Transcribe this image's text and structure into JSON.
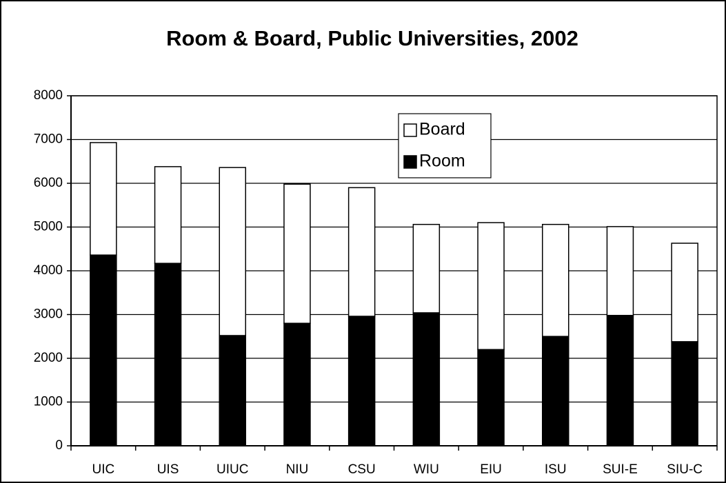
{
  "chart_data": {
    "type": "stacked_bar",
    "title": "Room & Board, Public Universities, 2002",
    "categories": [
      "UIC",
      "UIS",
      "UIUC",
      "NIU",
      "CSU",
      "WIU",
      "EIU",
      "ISU",
      "SUI-E",
      "SIU-C"
    ],
    "series": [
      {
        "name": "Room",
        "color": "#000000",
        "values": [
          4360,
          4170,
          2520,
          2800,
          2960,
          3040,
          2200,
          2500,
          2980,
          2380
        ]
      },
      {
        "name": "Board",
        "color": "#ffffff",
        "values": [
          2570,
          2210,
          3840,
          3180,
          2940,
          2020,
          2900,
          2560,
          2030,
          2250
        ]
      }
    ],
    "ylim": [
      0,
      8000
    ],
    "yticks": [
      0,
      1000,
      2000,
      3000,
      4000,
      5000,
      6000,
      7000,
      8000
    ],
    "grid": true,
    "legend": "top-center"
  }
}
